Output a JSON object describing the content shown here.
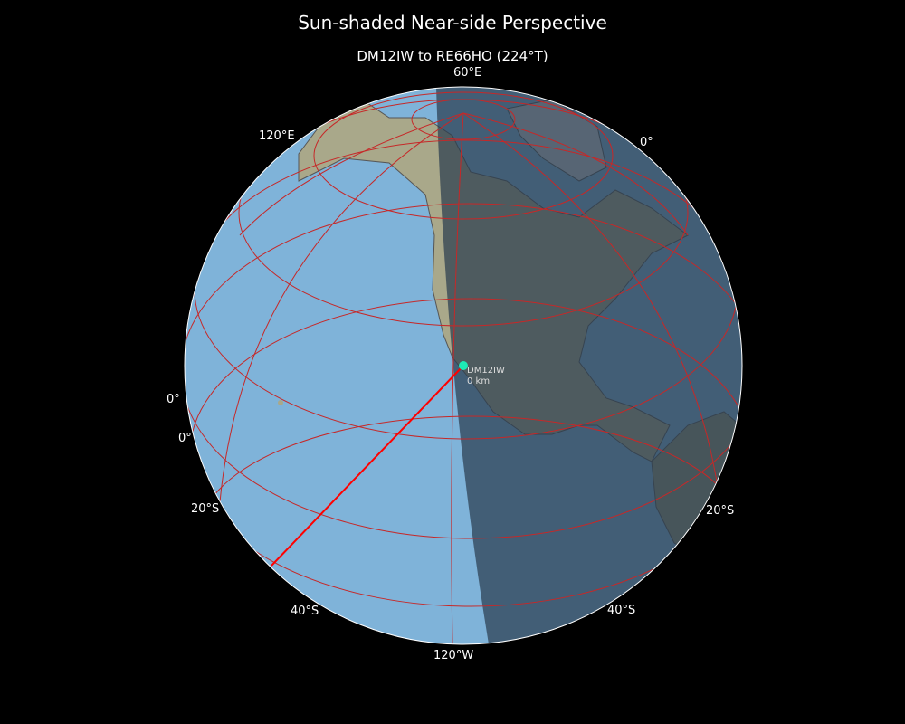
{
  "title": "Sun-shaded Near-side Perspective",
  "subtitle": "DM12IW to RE66HO (224°T)",
  "marker": {
    "label": "DM12IW",
    "distance": "0 km",
    "color": "#1de9b6"
  },
  "path_color": "#ff0000",
  "graticule_color": "#c62828",
  "ocean_color": "#7fb3d9",
  "night_shade_color": "#2b3d4f",
  "graticule_labels": {
    "top": "60°E",
    "upper_left": "120°E",
    "upper_right": "0°",
    "left_a": "0°",
    "left_b": "0°",
    "left_20s": "20°S",
    "right_20s": "20°S",
    "left_40s": "40°S",
    "right_40s": "40°S",
    "bottom": "120°W"
  }
}
